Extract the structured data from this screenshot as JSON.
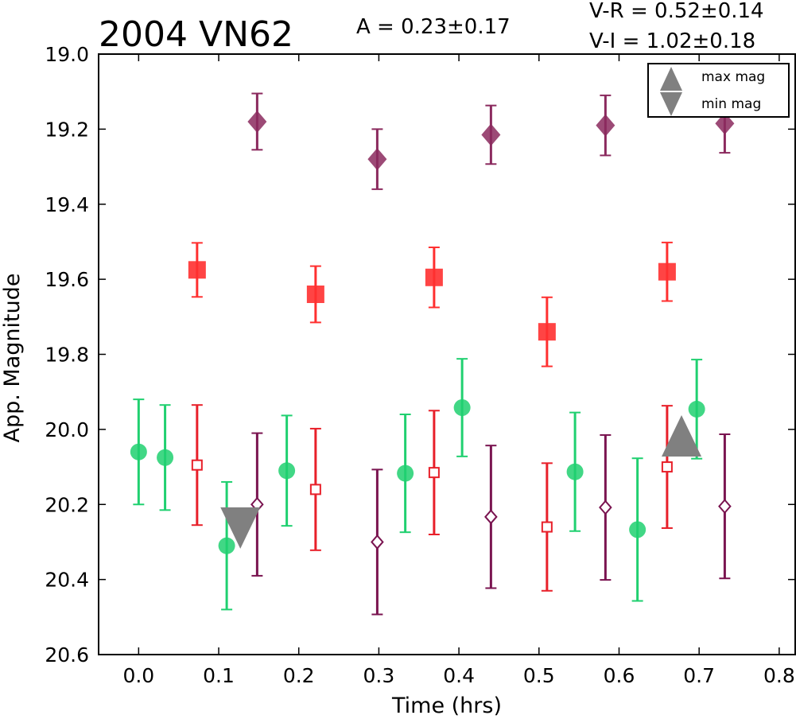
{
  "chart_data": {
    "type": "scatter",
    "title": "2004 VN62",
    "stats": {
      "amplitude": "A  = 0.23±0.17",
      "v_r": "V-R = 0.52±0.14",
      "v_i": "V-I  = 1.02±0.18"
    },
    "xlabel": "Time (hrs)",
    "ylabel": "App. Magnitude",
    "xlim": [
      -0.05,
      0.82
    ],
    "ylim": [
      20.6,
      19.0
    ],
    "y_inverted": true,
    "xticks": [
      "0.0",
      "0.1",
      "0.2",
      "0.3",
      "0.4",
      "0.5",
      "0.6",
      "0.7",
      "0.8"
    ],
    "yticks": [
      "19.0",
      "19.2",
      "19.4",
      "19.6",
      "19.8",
      "20.0",
      "20.2",
      "20.4",
      "20.6"
    ],
    "grid": false,
    "legend": {
      "position": "top-right",
      "entries": [
        "max mag",
        "min mag"
      ]
    },
    "series": [
      {
        "marker": "diamond-filled",
        "color": "#8b2a5e",
        "points": [
          {
            "x": 0.148,
            "y": 19.18,
            "err": 0.075
          },
          {
            "x": 0.298,
            "y": 19.28,
            "err": 0.08
          },
          {
            "x": 0.44,
            "y": 19.215,
            "err": 0.078
          },
          {
            "x": 0.583,
            "y": 19.19,
            "err": 0.08
          },
          {
            "x": 0.732,
            "y": 19.185,
            "err": 0.078
          }
        ]
      },
      {
        "marker": "square-filled",
        "color": "#ff3030",
        "points": [
          {
            "x": 0.073,
            "y": 19.575,
            "err": 0.072
          },
          {
            "x": 0.221,
            "y": 19.64,
            "err": 0.075
          },
          {
            "x": 0.369,
            "y": 19.595,
            "err": 0.08
          },
          {
            "x": 0.51,
            "y": 19.74,
            "err": 0.092
          },
          {
            "x": 0.66,
            "y": 19.58,
            "err": 0.078
          }
        ]
      },
      {
        "marker": "circle-filled",
        "color": "#20d070",
        "points": [
          {
            "x": 0.0,
            "y": 20.06,
            "err": 0.14
          },
          {
            "x": 0.033,
            "y": 20.075,
            "err": 0.14
          },
          {
            "x": 0.11,
            "y": 20.31,
            "err": 0.17
          },
          {
            "x": 0.185,
            "y": 20.11,
            "err": 0.147
          },
          {
            "x": 0.333,
            "y": 20.117,
            "err": 0.157
          },
          {
            "x": 0.404,
            "y": 19.942,
            "err": 0.13
          },
          {
            "x": 0.545,
            "y": 20.113,
            "err": 0.158
          },
          {
            "x": 0.623,
            "y": 20.267,
            "err": 0.19
          },
          {
            "x": 0.697,
            "y": 19.946,
            "err": 0.132
          }
        ]
      },
      {
        "marker": "square-open",
        "color": "#e8202a",
        "points": [
          {
            "x": 0.073,
            "y": 20.095,
            "err": 0.16
          },
          {
            "x": 0.221,
            "y": 20.16,
            "err": 0.162
          },
          {
            "x": 0.369,
            "y": 20.115,
            "err": 0.165
          },
          {
            "x": 0.51,
            "y": 20.26,
            "err": 0.17
          },
          {
            "x": 0.66,
            "y": 20.1,
            "err": 0.163
          }
        ]
      },
      {
        "marker": "diamond-open",
        "color": "#7a1450",
        "points": [
          {
            "x": 0.148,
            "y": 20.2,
            "err": 0.19
          },
          {
            "x": 0.298,
            "y": 20.3,
            "err": 0.193
          },
          {
            "x": 0.44,
            "y": 20.233,
            "err": 0.19
          },
          {
            "x": 0.583,
            "y": 20.208,
            "err": 0.193
          },
          {
            "x": 0.732,
            "y": 20.205,
            "err": 0.192
          }
        ]
      },
      {
        "marker": "triangle-up",
        "color": "#808080",
        "legend": "max mag",
        "points": [
          {
            "x": 0.678,
            "y": 20.03
          }
        ]
      },
      {
        "marker": "triangle-down",
        "color": "#808080",
        "legend": "min mag",
        "points": [
          {
            "x": 0.127,
            "y": 20.25
          }
        ]
      }
    ]
  }
}
